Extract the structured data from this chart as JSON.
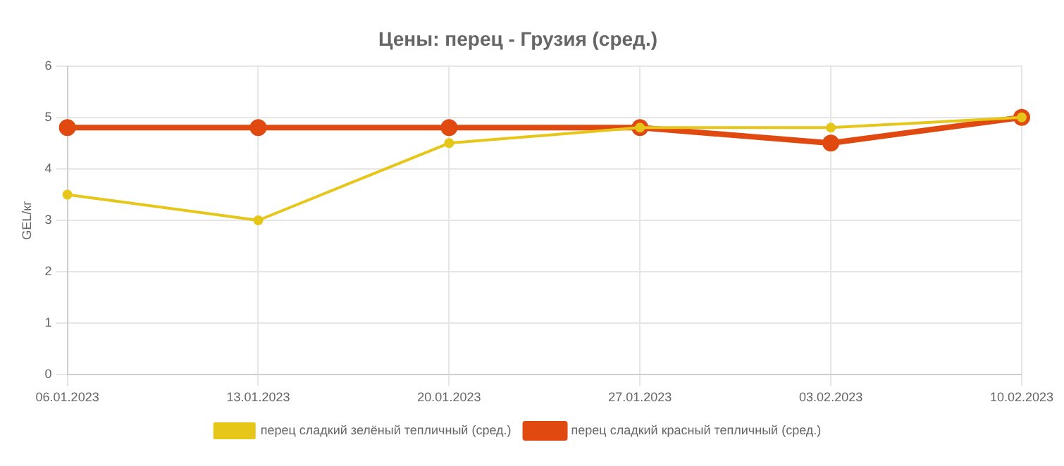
{
  "chart_data": {
    "type": "line",
    "title": "Цены: перец - Грузия (сред.)",
    "ylabel": "GEL/кг",
    "categories": [
      "06.01.2023",
      "13.01.2023",
      "20.01.2023",
      "27.01.2023",
      "03.02.2023",
      "10.02.2023"
    ],
    "series": [
      {
        "name": "перец сладкий зелёный тепличный (сред.)",
        "color": "#e5c619",
        "values": [
          3.5,
          3.0,
          4.5,
          4.8,
          4.8,
          5.0
        ]
      },
      {
        "name": "перец сладкий красный тепличный (сред.)",
        "color": "#e0490f",
        "values": [
          4.8,
          4.8,
          4.8,
          4.8,
          4.5,
          5.0
        ]
      }
    ],
    "ylim": [
      0,
      6
    ],
    "yticks": [
      0,
      1,
      2,
      3,
      4,
      5,
      6
    ],
    "grid": true,
    "legend": "bottom",
    "marker": "circle",
    "line_style": "solid"
  }
}
